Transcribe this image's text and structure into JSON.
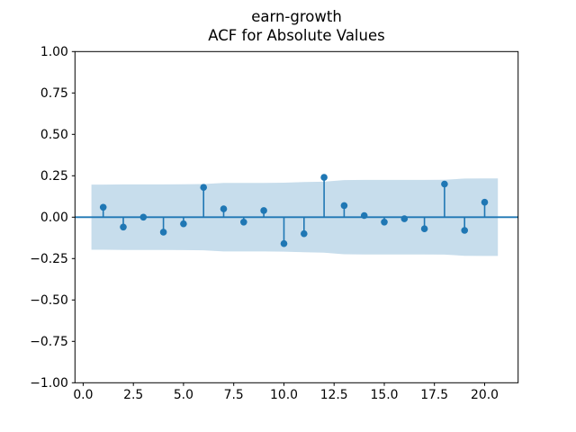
{
  "figure": {
    "background_color": "#ffffff"
  },
  "chart_data": {
    "type": "stem",
    "subtype": "acf",
    "title": "earn-growth\nACF for Absolute Values",
    "title_line1": "earn-growth",
    "title_line2": "ACF for Absolute Values",
    "xlabel": "",
    "ylabel": "",
    "grid": false,
    "legend": null,
    "xlim": [
      -0.41,
      21.67
    ],
    "ylim": [
      -1.0,
      1.0
    ],
    "x_ticks": [
      0.0,
      2.5,
      5.0,
      7.5,
      10.0,
      12.5,
      15.0,
      17.5,
      20.0
    ],
    "x_tick_labels": [
      "0.0",
      "2.5",
      "5.0",
      "7.5",
      "10.0",
      "12.5",
      "15.0",
      "17.5",
      "20.0"
    ],
    "y_ticks": [
      1.0,
      0.75,
      0.5,
      0.25,
      0.0,
      -0.25,
      -0.5,
      -0.75,
      -1.0
    ],
    "y_tick_labels": [
      "1.00",
      "0.75",
      "0.50",
      "0.25",
      "0.00",
      "−0.25",
      "−0.50",
      "−0.75",
      "−1.00"
    ],
    "lags": [
      1,
      2,
      3,
      4,
      5,
      6,
      7,
      8,
      9,
      10,
      11,
      12,
      13,
      14,
      15,
      16,
      17,
      18,
      19,
      20
    ],
    "acf_values": [
      0.06,
      -0.06,
      0.0,
      -0.09,
      -0.04,
      0.18,
      0.05,
      -0.03,
      0.04,
      -0.16,
      -0.1,
      0.24,
      0.07,
      0.01,
      -0.03,
      -0.01,
      -0.07,
      0.2,
      -0.08,
      0.09
    ],
    "confidence_band": {
      "x": [
        0.41,
        1,
        2,
        3,
        4,
        5,
        6,
        7,
        8,
        9,
        10,
        11,
        12,
        13,
        14,
        15,
        16,
        17,
        18,
        19,
        20,
        20.66
      ],
      "half_width": [
        0.197,
        0.197,
        0.198,
        0.198,
        0.198,
        0.199,
        0.2,
        0.207,
        0.207,
        0.207,
        0.208,
        0.212,
        0.214,
        0.224,
        0.225,
        0.225,
        0.225,
        0.225,
        0.226,
        0.233,
        0.234,
        0.234
      ]
    },
    "colors": {
      "stem": "#1f77b4",
      "marker": "#1f77b4",
      "zero_line": "#1f77b4",
      "band": "#c7ddec",
      "spine": "#000000",
      "tick_text": "#000000",
      "background": "#ffffff"
    }
  }
}
